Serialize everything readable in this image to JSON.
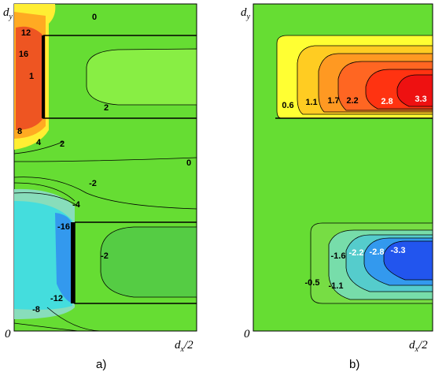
{
  "panels": [
    {
      "caption": "a)",
      "y_axis": {
        "base": "d",
        "sub": "y"
      },
      "origin": "0",
      "x_axis": {
        "base": "d",
        "sub": "x",
        "tail": "/2"
      },
      "contour_labels": [
        "0",
        "12",
        "16",
        "1",
        "8",
        "4",
        "2",
        "2",
        "0",
        "-2",
        "-4",
        "-16",
        "-2",
        "-12",
        "-8"
      ]
    },
    {
      "caption": "b)",
      "y_axis": {
        "base": "d",
        "sub": "y"
      },
      "origin": "0",
      "x_axis": {
        "base": "d",
        "sub": "x",
        "tail": "/2"
      },
      "contour_labels": [
        "0.6",
        "1.1",
        "1.7",
        "2.2",
        "2.8",
        "3.3",
        "-0.5",
        "-1.1",
        "-1.6",
        "-2.2",
        "-2.8",
        "-3.3"
      ]
    }
  ]
}
